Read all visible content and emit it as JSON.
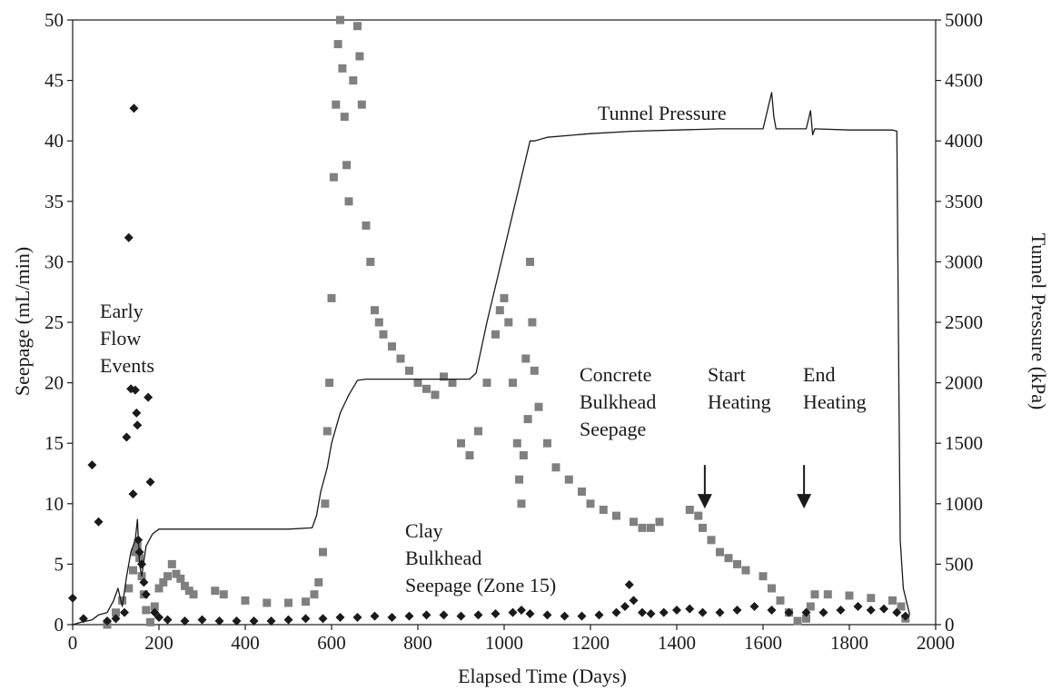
{
  "chart_data": {
    "type": "scatter",
    "xlabel": "Elapsed Time (Days)",
    "ylabel": "Seepage (mL/min)",
    "y2label": "Tunnel Pressure (kPa)",
    "xlim": [
      0,
      2000
    ],
    "ylim": [
      0,
      50
    ],
    "y2lim": [
      0,
      5000
    ],
    "x_ticks": [
      0,
      200,
      400,
      600,
      800,
      1000,
      1200,
      1400,
      1600,
      1800,
      2000
    ],
    "y_ticks": [
      0,
      5,
      10,
      15,
      20,
      25,
      30,
      35,
      40,
      45,
      50
    ],
    "y2_ticks": [
      0,
      500,
      1000,
      1500,
      2000,
      2500,
      3000,
      3500,
      4000,
      4500,
      5000
    ],
    "grid": false,
    "annotations": [
      {
        "id": "early-flow",
        "lines": [
          "Early",
          "Flow",
          "Events"
        ]
      },
      {
        "id": "tunnel-pressure",
        "lines": [
          "Tunnel Pressure"
        ]
      },
      {
        "id": "concrete-bulkhead",
        "lines": [
          "Concrete",
          "Bulkhead",
          "Seepage"
        ]
      },
      {
        "id": "clay-bulkhead",
        "lines": [
          "Clay",
          "Bulkhead",
          "Seepage (Zone 15)"
        ]
      },
      {
        "id": "start-heating",
        "lines": [
          "Start",
          "Heating"
        ],
        "arrow_x": 1465,
        "arrow_from_y": 13.2,
        "arrow_to_y": 9.6
      },
      {
        "id": "end-heating",
        "lines": [
          "End",
          "Heating"
        ],
        "arrow_x": 1695,
        "arrow_from_y": 13.2,
        "arrow_to_y": 9.6
      }
    ],
    "series": [
      {
        "id": "tunnel-pressure",
        "axis": "right",
        "style": "line",
        "color": "#1a1a1a",
        "x": [
          0,
          20,
          45,
          60,
          80,
          95,
          105,
          115,
          125,
          135,
          145,
          150,
          155,
          160,
          170,
          185,
          200,
          300,
          400,
          500,
          555,
          565,
          575,
          590,
          600,
          620,
          640,
          660,
          680,
          700,
          720,
          800,
          880,
          920,
          935,
          960,
          1000,
          1040,
          1060,
          1070,
          1100,
          1200,
          1300,
          1400,
          1500,
          1600,
          1620,
          1625,
          1630,
          1700,
          1710,
          1715,
          1720,
          1800,
          1900,
          1910,
          1915,
          1918,
          1925,
          1940
        ],
        "y": [
          0,
          20,
          40,
          80,
          100,
          200,
          300,
          150,
          400,
          600,
          700,
          870,
          500,
          400,
          650,
          750,
          790,
          790,
          790,
          790,
          800,
          900,
          1100,
          1300,
          1500,
          1750,
          1900,
          2020,
          2030,
          2030,
          2030,
          2030,
          2030,
          2030,
          2080,
          2500,
          3100,
          3700,
          4000,
          4000,
          4030,
          4060,
          4080,
          4090,
          4100,
          4100,
          4400,
          4200,
          4100,
          4100,
          4250,
          4050,
          4100,
          4090,
          4090,
          4080,
          1900,
          700,
          300,
          80
        ]
      },
      {
        "id": "concrete-bulkhead",
        "axis": "left",
        "style": "square",
        "color": "#808080",
        "x": [
          80,
          100,
          115,
          130,
          140,
          145,
          150,
          155,
          160,
          165,
          170,
          180,
          190,
          200,
          210,
          220,
          230,
          240,
          250,
          260,
          270,
          280,
          330,
          350,
          400,
          450,
          500,
          540,
          560,
          570,
          580,
          585,
          590,
          595,
          600,
          605,
          610,
          615,
          620,
          625,
          630,
          635,
          640,
          650,
          660,
          665,
          670,
          680,
          690,
          700,
          710,
          720,
          740,
          760,
          780,
          800,
          820,
          840,
          860,
          880,
          900,
          920,
          940,
          960,
          980,
          990,
          1000,
          1010,
          1020,
          1030,
          1035,
          1040,
          1045,
          1050,
          1055,
          1060,
          1065,
          1070,
          1080,
          1100,
          1120,
          1150,
          1180,
          1200,
          1230,
          1260,
          1300,
          1320,
          1340,
          1360,
          1430,
          1450,
          1460,
          1480,
          1500,
          1520,
          1540,
          1560,
          1600,
          1620,
          1640,
          1660,
          1680,
          1700,
          1710,
          1720,
          1750,
          1800,
          1850,
          1900,
          1920,
          1930
        ],
        "y": [
          0,
          1,
          2,
          3,
          4.5,
          6,
          6.5,
          5.5,
          4,
          2.5,
          1.2,
          0.2,
          1.5,
          3.0,
          3.5,
          4.0,
          5.0,
          4.2,
          3.8,
          3.2,
          2.8,
          2.5,
          2.8,
          2.5,
          2.0,
          1.8,
          1.8,
          1.9,
          2.5,
          3.5,
          6,
          10,
          16,
          20,
          27,
          37,
          43,
          48,
          50,
          46,
          42,
          38,
          35,
          45,
          49.5,
          47,
          43,
          33,
          30,
          26,
          25,
          24,
          23,
          22,
          21,
          20,
          19.5,
          19,
          20.5,
          20,
          15,
          14,
          16,
          20,
          24,
          26,
          27,
          25,
          20,
          15,
          12,
          10,
          14,
          22,
          17,
          30,
          25,
          21,
          18,
          15,
          13,
          12,
          11,
          10,
          9.5,
          9,
          8.5,
          8,
          8,
          8.5,
          9.5,
          9.0,
          8.0,
          7.0,
          6.0,
          5.5,
          5.0,
          4.5,
          4.0,
          3.0,
          2.0,
          1.0,
          0.3,
          0.5,
          1.5,
          2.5,
          2.5,
          2.4,
          2.2,
          2.0,
          1.5,
          0.5
        ]
      },
      {
        "id": "clay-bulkhead",
        "axis": "left",
        "style": "diamond",
        "color": "#1a1a1a",
        "x": [
          0,
          25,
          45,
          60,
          80,
          100,
          120,
          125,
          130,
          135,
          140,
          142,
          145,
          148,
          150,
          152,
          155,
          160,
          165,
          170,
          175,
          180,
          190,
          200,
          220,
          260,
          300,
          340,
          380,
          420,
          460,
          500,
          540,
          580,
          620,
          660,
          700,
          740,
          780,
          820,
          860,
          900,
          940,
          980,
          1020,
          1040,
          1060,
          1100,
          1140,
          1180,
          1220,
          1260,
          1280,
          1290,
          1300,
          1320,
          1340,
          1370,
          1400,
          1430,
          1460,
          1500,
          1540,
          1580,
          1620,
          1660,
          1700,
          1740,
          1780,
          1820,
          1850,
          1880,
          1910,
          1930
        ],
        "y": [
          2.2,
          0.5,
          13.2,
          8.5,
          0.3,
          0.5,
          1.0,
          15.5,
          32,
          19.5,
          10.8,
          42.7,
          19.4,
          17.5,
          16.5,
          7.0,
          6.0,
          5.0,
          3.5,
          2.5,
          18.8,
          11.8,
          1.0,
          0.6,
          0.4,
          0.3,
          0.4,
          0.3,
          0.3,
          0.3,
          0.3,
          0.4,
          0.5,
          0.5,
          0.6,
          0.6,
          0.7,
          0.6,
          0.7,
          0.8,
          0.8,
          0.7,
          0.8,
          0.9,
          1.0,
          1.2,
          0.9,
          0.8,
          0.7,
          0.7,
          0.8,
          1.0,
          1.5,
          3.3,
          2.0,
          1.0,
          0.9,
          1.0,
          1.2,
          1.3,
          1.0,
          1.0,
          1.2,
          1.5,
          1.2,
          1.0,
          1.0,
          1.0,
          1.2,
          1.5,
          1.2,
          1.3,
          1.0,
          0.7
        ]
      }
    ]
  }
}
